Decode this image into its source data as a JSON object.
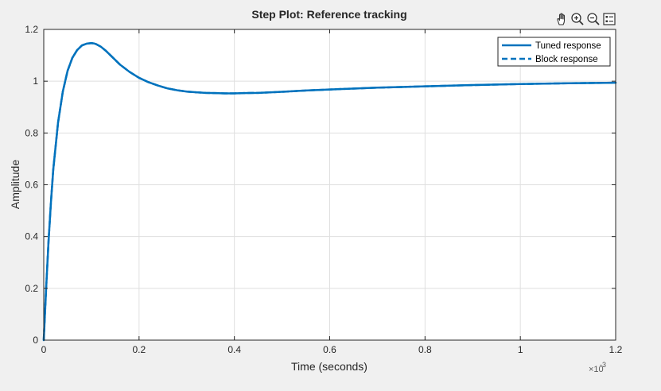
{
  "colors": {
    "series": "#0072bd",
    "figure_bg": "#f0f0f0",
    "axes_bg": "#ffffff",
    "grid": "#dfdfdf",
    "axis_text": "#262626"
  },
  "toolbar": {
    "icons": [
      "pan-icon",
      "zoom-in-icon",
      "zoom-out-icon",
      "legend-icon"
    ]
  },
  "chart_data": {
    "type": "line",
    "title": "Step Plot: Reference tracking",
    "xlabel": "Time (seconds)",
    "ylabel": "Amplitude",
    "x_exponent_label": "×10",
    "x_exponent_power": "-3",
    "xlim": [
      0,
      1.2
    ],
    "ylim": [
      0,
      1.2
    ],
    "x_scale_factor": "1e-3",
    "xticks": [
      0,
      0.2,
      0.4,
      0.6,
      0.8,
      1,
      1.2
    ],
    "xtick_labels": [
      "0",
      "0.2",
      "0.4",
      "0.6",
      "0.8",
      "1",
      "1.2"
    ],
    "yticks": [
      0,
      0.2,
      0.4,
      0.6,
      0.8,
      1,
      1.2
    ],
    "ytick_labels": [
      "0",
      "0.2",
      "0.4",
      "0.6",
      "0.8",
      "1",
      "1.2"
    ],
    "grid": true,
    "legend_position": "top-right",
    "series": [
      {
        "name": "Tuned response",
        "style": "solid",
        "x": [
          0,
          0.005,
          0.01,
          0.015,
          0.02,
          0.03,
          0.04,
          0.05,
          0.06,
          0.07,
          0.08,
          0.09,
          0.1,
          0.105,
          0.11,
          0.12,
          0.13,
          0.14,
          0.15,
          0.16,
          0.18,
          0.2,
          0.22,
          0.24,
          0.26,
          0.28,
          0.3,
          0.32,
          0.34,
          0.36,
          0.38,
          0.4,
          0.42,
          0.45,
          0.5,
          0.55,
          0.6,
          0.7,
          0.8,
          0.9,
          1.0,
          1.1,
          1.2
        ],
        "y": [
          0,
          0.2,
          0.38,
          0.53,
          0.66,
          0.84,
          0.96,
          1.04,
          1.09,
          1.12,
          1.138,
          1.145,
          1.147,
          1.146,
          1.143,
          1.133,
          1.118,
          1.1,
          1.082,
          1.064,
          1.036,
          1.013,
          0.996,
          0.983,
          0.972,
          0.965,
          0.96,
          0.957,
          0.955,
          0.954,
          0.953,
          0.953,
          0.954,
          0.955,
          0.959,
          0.964,
          0.968,
          0.975,
          0.98,
          0.985,
          0.989,
          0.992,
          0.994
        ]
      },
      {
        "name": "Block response",
        "style": "dashed",
        "x": [
          0,
          0.005,
          0.01,
          0.015,
          0.02,
          0.03,
          0.04,
          0.05,
          0.06,
          0.07,
          0.08,
          0.09,
          0.1,
          0.105,
          0.11,
          0.12,
          0.13,
          0.14,
          0.15,
          0.16,
          0.18,
          0.2,
          0.22,
          0.24,
          0.26,
          0.28,
          0.3,
          0.32,
          0.34,
          0.36,
          0.38,
          0.4,
          0.42,
          0.45,
          0.5,
          0.55,
          0.6,
          0.7,
          0.8,
          0.9,
          1.0,
          1.1,
          1.2
        ],
        "y": [
          0,
          0.2,
          0.38,
          0.53,
          0.66,
          0.84,
          0.96,
          1.04,
          1.09,
          1.12,
          1.138,
          1.145,
          1.147,
          1.146,
          1.143,
          1.133,
          1.118,
          1.1,
          1.082,
          1.064,
          1.036,
          1.013,
          0.996,
          0.983,
          0.972,
          0.965,
          0.96,
          0.957,
          0.955,
          0.954,
          0.953,
          0.953,
          0.954,
          0.955,
          0.959,
          0.964,
          0.968,
          0.975,
          0.98,
          0.985,
          0.989,
          0.992,
          0.994
        ]
      }
    ]
  }
}
